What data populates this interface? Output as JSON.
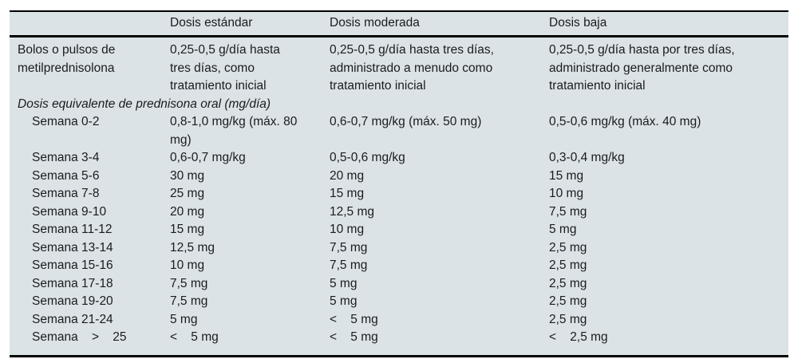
{
  "page": {
    "background_color": "#ffffff",
    "table_background_color": "#dce3e6",
    "rule_color": "#000000",
    "text_color": "#191c1e"
  },
  "table": {
    "columns": [
      "",
      "Dosis estándar",
      "Dosis moderada",
      "Dosis baja"
    ],
    "rows": [
      {
        "label": "Bolos o pulsos de metilprednisolona",
        "indent": false,
        "section_header": false,
        "cells": [
          "0,25-0,5 g/día hasta tres días, como tratamiento inicial",
          "0,25-0,5 g/día hasta tres días, administrado a menudo como tratamiento inicial",
          "0,25-0,5 g/día hasta por tres días, administrado generalmente como tratamiento inicial"
        ]
      },
      {
        "label": "Dosis equivalente de prednisona oral (mg/día)",
        "indent": false,
        "section_header": true,
        "cells": []
      },
      {
        "label": "Semana 0-2",
        "indent": true,
        "section_header": false,
        "cells": [
          "0,8-1,0 mg/kg (máx. 80 mg)",
          "0,6-0,7 mg/kg (máx. 50 mg)",
          "0,5-0,6 mg/kg (máx. 40 mg)"
        ]
      },
      {
        "label": "Semana 3-4",
        "indent": true,
        "section_header": false,
        "cells": [
          "0,6-0,7 mg/kg",
          "0,5-0,6 mg/kg",
          "0,3-0,4 mg/kg"
        ]
      },
      {
        "label": "Semana 5-6",
        "indent": true,
        "section_header": false,
        "cells": [
          "30 mg",
          "20 mg",
          "15 mg"
        ]
      },
      {
        "label": "Semana 7-8",
        "indent": true,
        "section_header": false,
        "cells": [
          "25 mg",
          "15 mg",
          "10 mg"
        ]
      },
      {
        "label": "Semana 9-10",
        "indent": true,
        "section_header": false,
        "cells": [
          "20 mg",
          "12,5 mg",
          "7,5 mg"
        ]
      },
      {
        "label": "Semana 11-12",
        "indent": true,
        "section_header": false,
        "cells": [
          "15 mg",
          "10 mg",
          "5 mg"
        ]
      },
      {
        "label": "Semana 13-14",
        "indent": true,
        "section_header": false,
        "cells": [
          "12,5 mg",
          "7,5 mg",
          "2,5 mg"
        ]
      },
      {
        "label": "Semana 15-16",
        "indent": true,
        "section_header": false,
        "cells": [
          "10 mg",
          "7,5 mg",
          "2,5 mg"
        ]
      },
      {
        "label": "Semana 17-18",
        "indent": true,
        "section_header": false,
        "cells": [
          "7,5 mg",
          "5 mg",
          "2,5 mg"
        ]
      },
      {
        "label": "Semana 19-20",
        "indent": true,
        "section_header": false,
        "cells": [
          "7,5 mg",
          "5 mg",
          "2,5 mg"
        ]
      },
      {
        "label": "Semana 21-24",
        "indent": true,
        "section_header": false,
        "cells": [
          "5 mg",
          "<    5 mg",
          "2,5 mg"
        ]
      },
      {
        "label": "Semana    >    25",
        "indent": true,
        "section_header": false,
        "cells": [
          "<    5 mg",
          "<    5 mg",
          "<    2,5 mg"
        ]
      }
    ]
  }
}
